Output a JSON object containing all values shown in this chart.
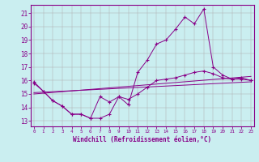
{
  "xlabel": "Windchill (Refroidissement éolien,°C)",
  "x": [
    0,
    1,
    2,
    3,
    4,
    5,
    6,
    7,
    8,
    9,
    10,
    11,
    12,
    13,
    14,
    15,
    16,
    17,
    18,
    19,
    20,
    21,
    22,
    23
  ],
  "line1": [
    15.9,
    15.2,
    14.5,
    14.1,
    13.5,
    13.5,
    13.2,
    13.2,
    13.5,
    14.8,
    14.2,
    16.6,
    17.5,
    18.7,
    19.0,
    19.8,
    20.7,
    20.2,
    21.3,
    17.0,
    16.4,
    16.1,
    16.2,
    16.0
  ],
  "line2": [
    15.8,
    15.2,
    14.5,
    14.1,
    13.5,
    13.5,
    13.2,
    14.8,
    14.4,
    14.8,
    14.6,
    15.0,
    15.5,
    16.0,
    16.1,
    16.2,
    16.4,
    16.6,
    16.7,
    16.5,
    16.2,
    16.1,
    16.1,
    16.0
  ],
  "line3": [
    [
      0,
      23
    ],
    [
      15.0,
      16.3
    ]
  ],
  "line4": [
    [
      0,
      23
    ],
    [
      15.1,
      15.9
    ]
  ],
  "bg_color": "#caeef0",
  "grid_color": "#b0b0b0",
  "line_color": "#880088",
  "ylim": [
    12.6,
    21.6
  ],
  "xlim": [
    -0.3,
    23.3
  ],
  "yticks": [
    13,
    14,
    15,
    16,
    17,
    18,
    19,
    20,
    21
  ],
  "xticks": [
    0,
    1,
    2,
    3,
    4,
    5,
    6,
    7,
    8,
    9,
    10,
    11,
    12,
    13,
    14,
    15,
    16,
    17,
    18,
    19,
    20,
    21,
    22,
    23
  ]
}
